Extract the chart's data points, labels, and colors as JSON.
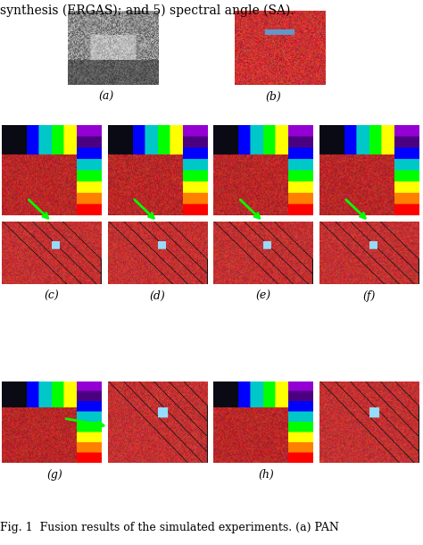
{
  "title_text": "synthesis (ERGAS); and 5) spectral angle (SA).",
  "caption": "Fig. 1  Fusion results of the simulated experiments. (a) PAN",
  "labels_row1": [
    "(a)",
    "(b)"
  ],
  "labels_row2": [
    "(c)",
    "(d)",
    "(e)",
    "(f)"
  ],
  "labels_row3": [
    "(g)",
    "(h)"
  ],
  "bg_color": "#ffffff",
  "text_color": "#000000",
  "font_size_title": 10,
  "font_size_label": 9,
  "font_size_caption": 9
}
